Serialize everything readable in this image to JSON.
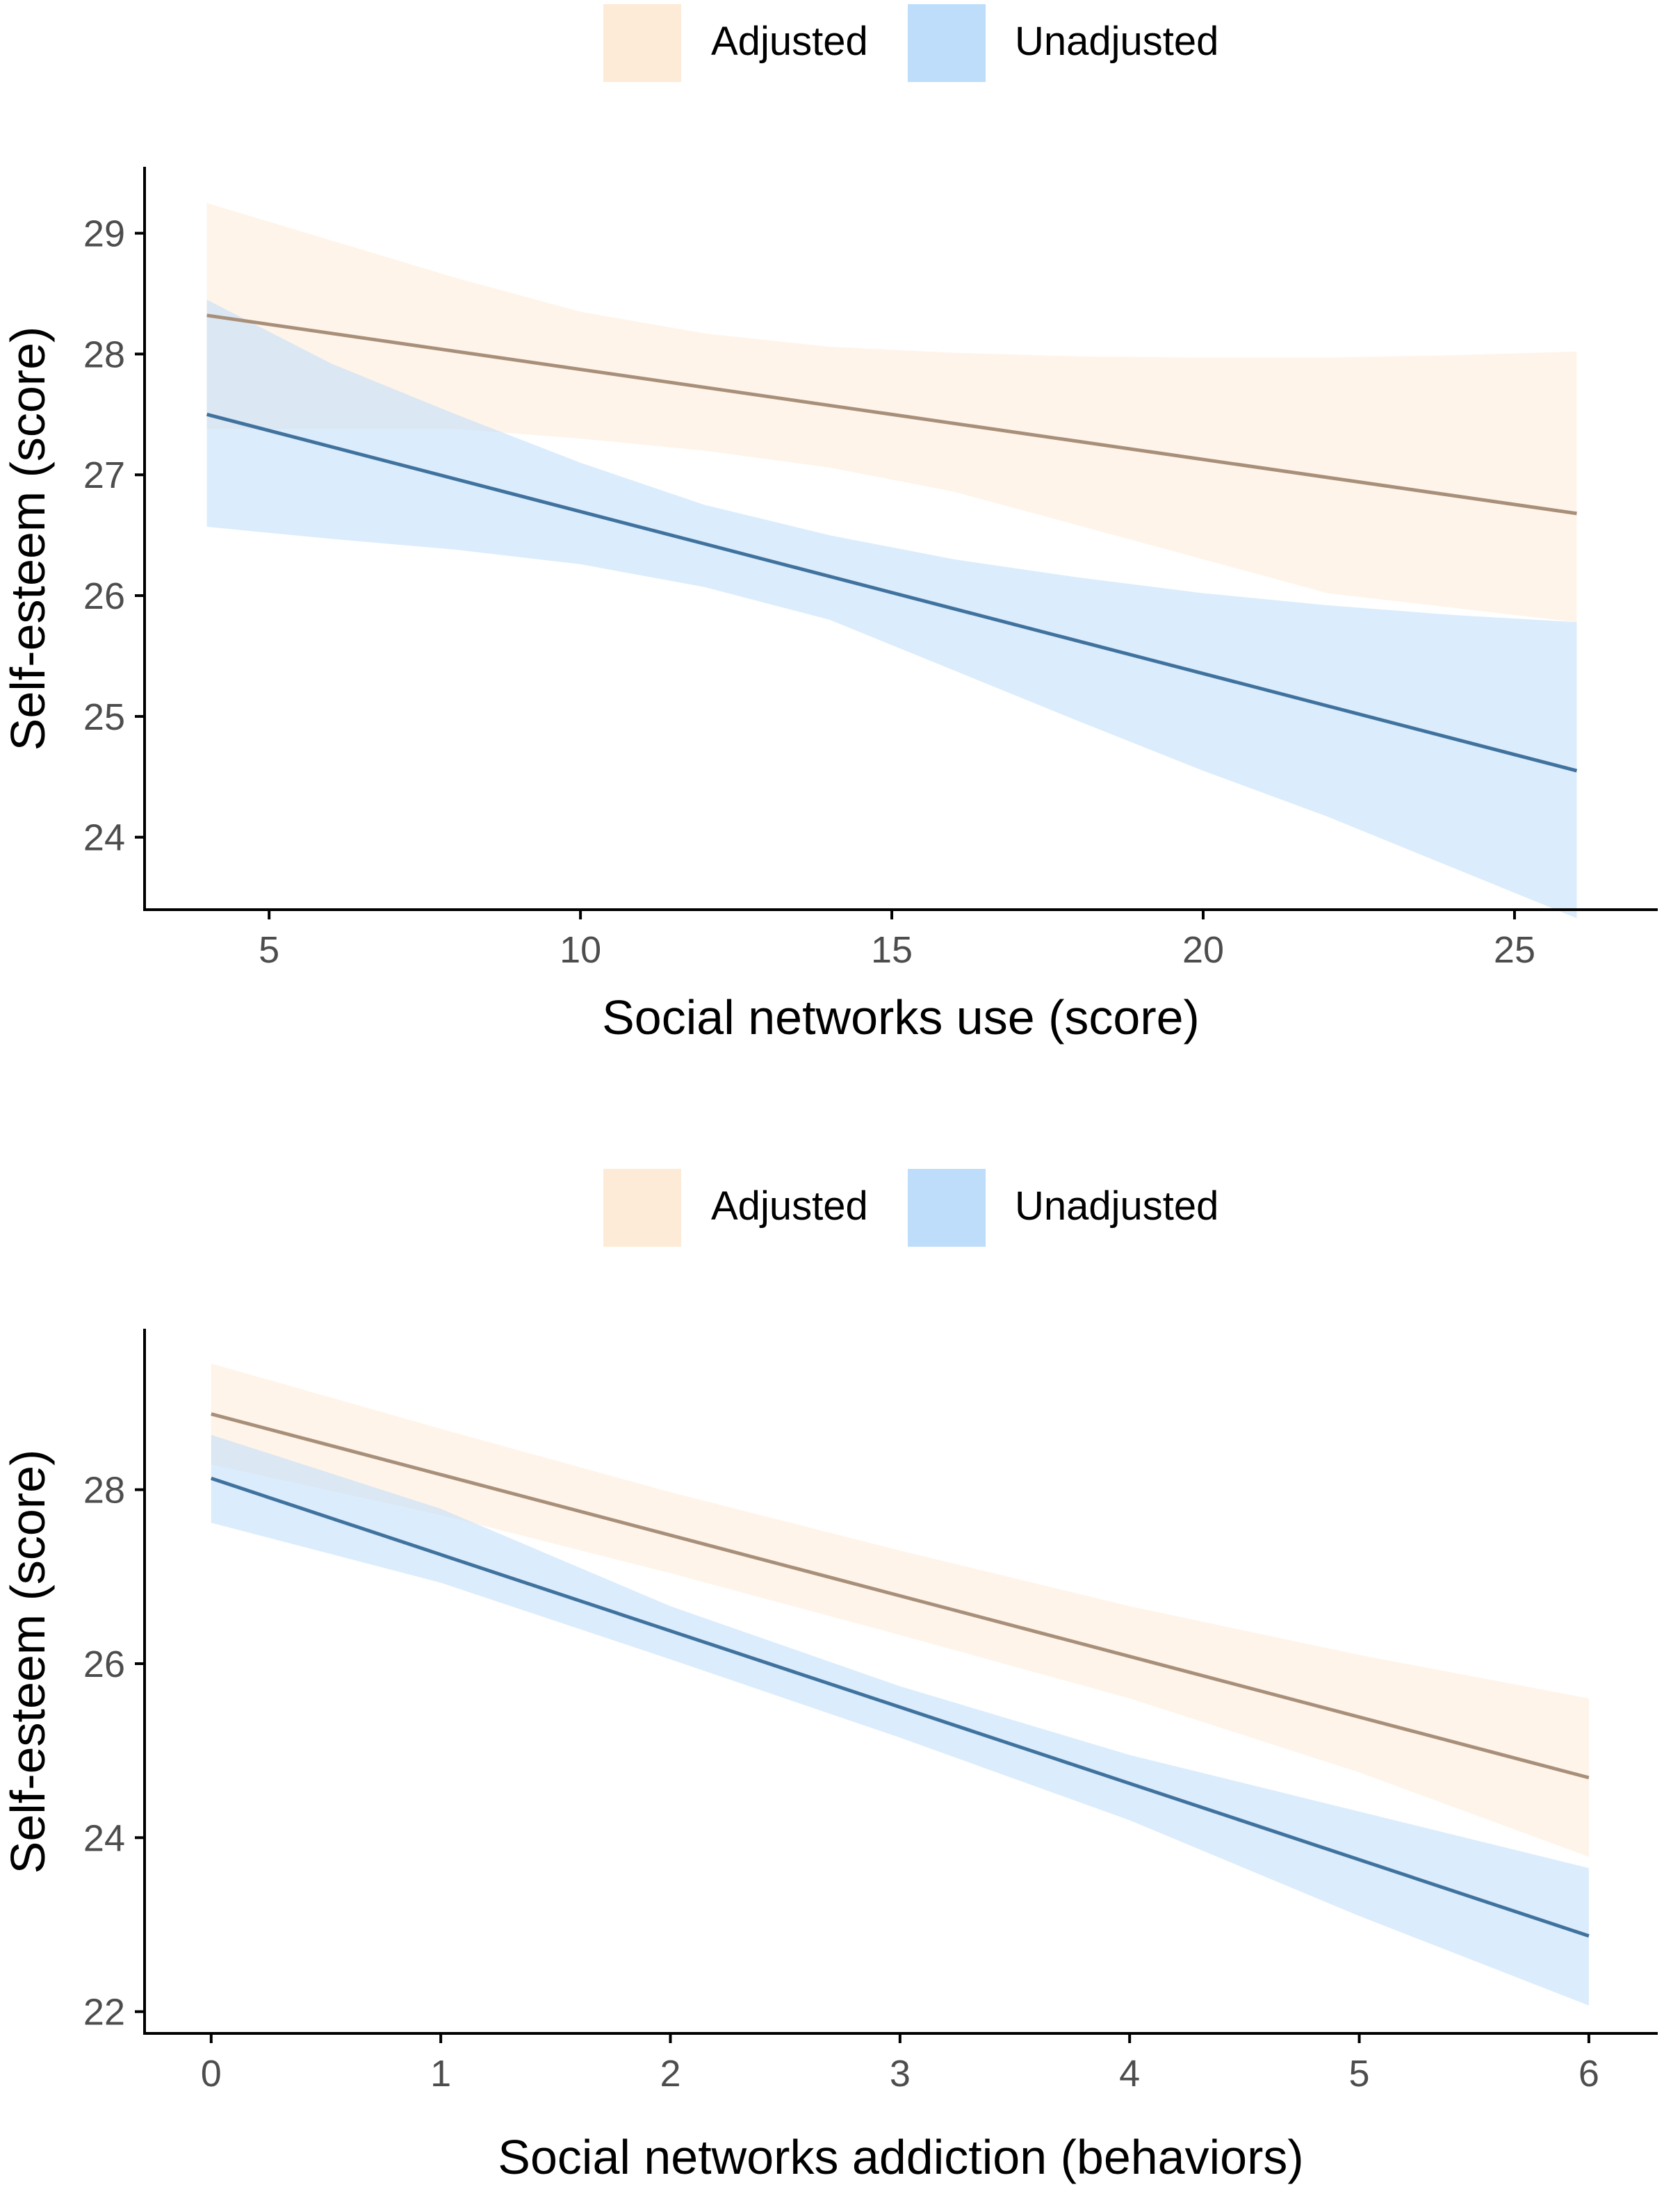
{
  "legend": {
    "items": [
      {
        "label": "Adjusted",
        "color": "#FDEBD7"
      },
      {
        "label": "Unadjusted",
        "color": "#BDDDFA"
      }
    ]
  },
  "colors": {
    "adjusted_line": "#A88F7A",
    "adjusted_band": "#FDEBD7",
    "unadjusted_line": "#40729E",
    "unadjusted_band": "#BDDDFA",
    "axis": "#000000",
    "tick_text": "#4D4D4D"
  },
  "chart_data": [
    {
      "type": "line",
      "title": "",
      "xlabel": "Social networks use (score)",
      "ylabel": "Self-esteem (score)",
      "xlim": [
        3,
        27.3
      ],
      "ylim": [
        23.4,
        29.55
      ],
      "xticks": [
        5,
        10,
        15,
        20,
        25
      ],
      "yticks": [
        24,
        25,
        26,
        27,
        28,
        29
      ],
      "legend_position": "top",
      "series": [
        {
          "name": "Adjusted",
          "x": [
            4,
            26
          ],
          "y": [
            28.32,
            26.68
          ],
          "band_x": [
            4,
            8,
            10,
            12,
            14,
            16,
            18,
            20,
            22,
            24,
            26
          ],
          "band_upper": [
            29.25,
            28.63,
            28.35,
            28.17,
            28.06,
            28.01,
            27.98,
            27.97,
            27.97,
            27.99,
            28.02
          ],
          "band_lower": [
            27.38,
            27.38,
            27.3,
            27.2,
            27.06,
            26.86,
            26.58,
            26.3,
            26.02,
            25.9,
            25.78
          ]
        },
        {
          "name": "Unadjusted",
          "x": [
            4,
            26
          ],
          "y": [
            27.5,
            24.55
          ],
          "band_x": [
            4,
            6,
            8,
            10,
            12,
            14,
            16,
            18,
            20,
            22,
            24,
            26
          ],
          "band_upper": [
            28.45,
            27.92,
            27.5,
            27.1,
            26.75,
            26.5,
            26.3,
            26.15,
            26.02,
            25.92,
            25.84,
            25.78
          ],
          "band_lower": [
            26.57,
            26.47,
            26.38,
            26.26,
            26.07,
            25.8,
            25.38,
            24.96,
            24.55,
            24.17,
            23.75,
            23.33
          ]
        }
      ]
    },
    {
      "type": "line",
      "title": "",
      "xlabel": "Social networks addiction (behaviors)",
      "ylabel": "Self-esteem (score)",
      "xlim": [
        -0.29,
        6.3
      ],
      "ylim": [
        21.75,
        29.85
      ],
      "xticks": [
        0,
        1,
        2,
        3,
        4,
        5,
        6
      ],
      "yticks": [
        22,
        24,
        26,
        28
      ],
      "legend_position": "top",
      "series": [
        {
          "name": "Adjusted",
          "x": [
            0,
            6
          ],
          "y": [
            28.87,
            24.69
          ],
          "band_x": [
            0,
            1,
            2,
            3,
            4,
            5,
            6
          ],
          "band_upper": [
            29.45,
            28.7,
            27.97,
            27.3,
            26.66,
            26.1,
            25.6
          ],
          "band_lower": [
            28.29,
            27.71,
            27.04,
            26.33,
            25.6,
            24.75,
            23.78
          ]
        },
        {
          "name": "Unadjusted",
          "x": [
            0,
            6
          ],
          "y": [
            28.13,
            22.87
          ],
          "band_x": [
            0,
            1,
            2,
            3,
            4,
            5,
            6
          ],
          "band_upper": [
            28.63,
            27.78,
            26.66,
            25.74,
            24.95,
            24.3,
            23.65
          ],
          "band_lower": [
            27.62,
            26.93,
            26.05,
            25.15,
            24.2,
            23.1,
            22.07
          ]
        }
      ]
    }
  ]
}
